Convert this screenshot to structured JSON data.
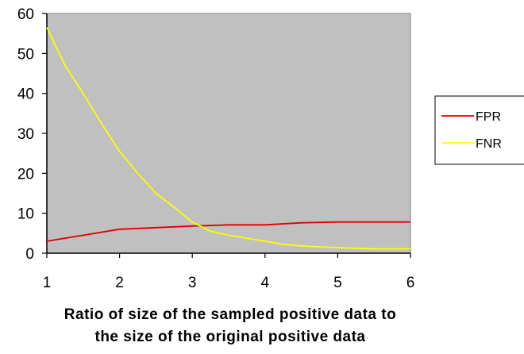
{
  "chart_data": {
    "type": "line",
    "xlabel_lines": [
      "Ratio of size of the sampled positive data to",
      "the size of the original positive data"
    ],
    "ylabel": "",
    "xlim": [
      1,
      6
    ],
    "ylim": [
      0,
      60
    ],
    "xticks": [
      1,
      2,
      3,
      4,
      5,
      6
    ],
    "yticks": [
      0,
      10,
      20,
      30,
      40,
      50,
      60
    ],
    "plot_background": "#c0c0c0",
    "grid": false,
    "legend_position": "right",
    "series": [
      {
        "name": "FPR",
        "color": "#e00000",
        "x": [
          1,
          2,
          2.5,
          3,
          3.5,
          4,
          4.5,
          5,
          5.5,
          6
        ],
        "y": [
          3,
          6,
          6.4,
          6.8,
          7.1,
          7.1,
          7.6,
          7.8,
          7.8,
          7.8
        ]
      },
      {
        "name": "FNR",
        "color": "#ffff00",
        "x": [
          1,
          1.25,
          1.5,
          1.75,
          2,
          2.25,
          2.5,
          2.75,
          3,
          3.25,
          3.5,
          4,
          4.25,
          4.5,
          5,
          5.5,
          6
        ],
        "y": [
          56.5,
          47,
          40,
          32.5,
          25.5,
          20,
          15,
          11.5,
          7.8,
          5.5,
          4.5,
          3,
          2.2,
          1.8,
          1.4,
          1.1,
          1.1
        ]
      }
    ]
  }
}
